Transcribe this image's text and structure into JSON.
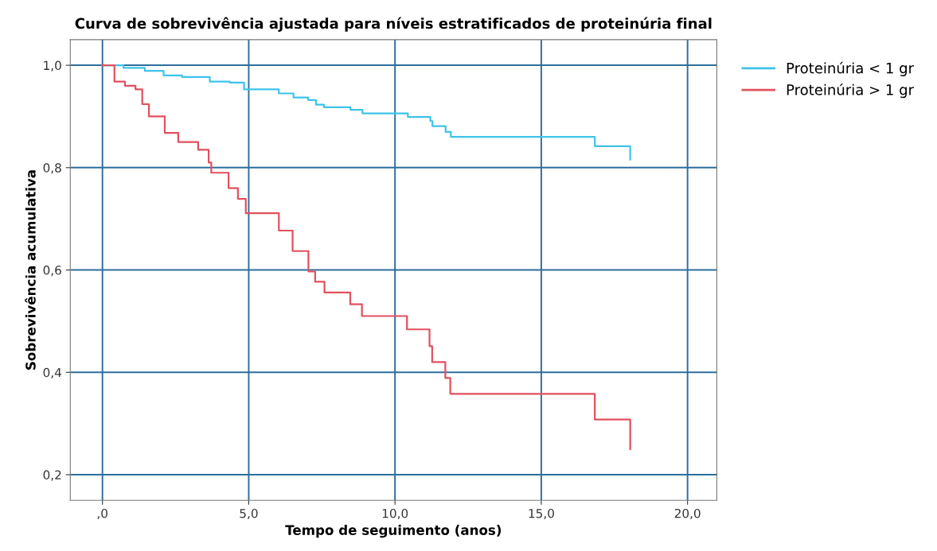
{
  "chart_data": {
    "type": "step",
    "title": "Curva de sobrevivência ajustada para níveis estratificados de proteinúria final",
    "xlabel": "Tempo de seguimento (anos)",
    "ylabel": "Sobrevivência acumulativa",
    "xlim": [
      -1.1,
      21.0
    ],
    "ylim": [
      0.15,
      1.05
    ],
    "xticks": [
      {
        "value": 0,
        "label": ",0"
      },
      {
        "value": 5,
        "label": "5,0"
      },
      {
        "value": 10,
        "label": "10,0"
      },
      {
        "value": 15,
        "label": "15,0"
      },
      {
        "value": 20,
        "label": "20,0"
      }
    ],
    "yticks": [
      {
        "value": 0.2,
        "label": "0,2"
      },
      {
        "value": 0.4,
        "label": "0,4"
      },
      {
        "value": 0.6,
        "label": "0,6"
      },
      {
        "value": 0.8,
        "label": "0,8"
      },
      {
        "value": 1.0,
        "label": "1,0"
      }
    ],
    "grid": true,
    "legend": "right",
    "line_style": "solid",
    "series": [
      {
        "name": "Proteinúria < 1 gr",
        "color": "#3ec3ea",
        "x": [
          0,
          0.72,
          1.45,
          2.09,
          2.72,
          3.67,
          4.35,
          4.84,
          6.03,
          6.53,
          7.03,
          7.3,
          7.57,
          8.48,
          8.89,
          10.44,
          11.21,
          11.28,
          11.73,
          11.91,
          16.83,
          18.04
        ],
        "values": [
          1.0,
          0.995,
          0.989,
          0.98,
          0.977,
          0.968,
          0.966,
          0.953,
          0.945,
          0.937,
          0.932,
          0.923,
          0.918,
          0.913,
          0.906,
          0.899,
          0.891,
          0.881,
          0.87,
          0.86,
          0.842,
          0.816
        ]
      },
      {
        "name": "Proteinúria > 1 gr",
        "color": "#e2505e",
        "x": [
          0,
          0.41,
          0.77,
          1.13,
          1.36,
          1.59,
          2.13,
          2.59,
          3.27,
          3.63,
          3.72,
          4.31,
          4.63,
          4.9,
          6.03,
          6.5,
          7.04,
          7.27,
          7.59,
          8.47,
          8.87,
          10.41,
          11.18,
          11.27,
          11.72,
          11.89,
          16.83,
          18.04
        ],
        "values": [
          1.0,
          0.968,
          0.96,
          0.953,
          0.924,
          0.9,
          0.868,
          0.85,
          0.835,
          0.81,
          0.79,
          0.76,
          0.739,
          0.711,
          0.677,
          0.637,
          0.597,
          0.577,
          0.556,
          0.533,
          0.51,
          0.484,
          0.451,
          0.42,
          0.389,
          0.358,
          0.308,
          0.25
        ]
      }
    ]
  }
}
